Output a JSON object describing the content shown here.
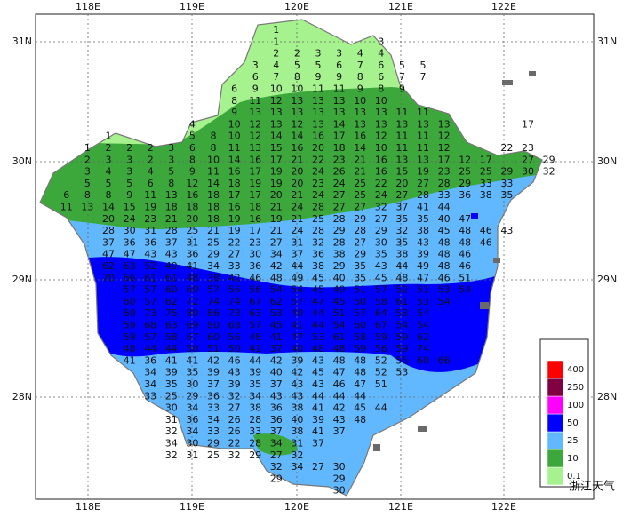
{
  "map": {
    "lon_labels": [
      "118E",
      "119E",
      "120E",
      "121E",
      "122E"
    ],
    "lat_labels": [
      "31N",
      "30N",
      "29N",
      "28N"
    ],
    "legend": [
      {
        "value": 0.1,
        "color": "#a6f28f"
      },
      {
        "value": 10,
        "color": "#3ca83c"
      },
      {
        "value": 25,
        "color": "#61b8ff"
      },
      {
        "value": 50,
        "color": "#0000fe"
      },
      {
        "value": 100,
        "color": "#ff00ff"
      },
      {
        "value": 250,
        "color": "#800040"
      },
      {
        "value": 400,
        "color": "#fe0000"
      }
    ],
    "watermark": "浙江天气",
    "stations": [
      [
        null,
        null,
        null,
        null,
        null,
        null,
        null,
        null,
        null,
        null,
        1
      ],
      [
        null,
        null,
        null,
        null,
        null,
        null,
        null,
        null,
        null,
        null,
        1,
        null,
        null,
        null,
        null,
        3
      ],
      [
        null,
        null,
        null,
        null,
        null,
        null,
        null,
        null,
        null,
        null,
        2,
        2,
        3,
        3,
        4,
        4
      ],
      [
        null,
        null,
        null,
        null,
        null,
        null,
        null,
        null,
        null,
        3,
        4,
        5,
        5,
        6,
        7,
        6,
        5,
        5
      ],
      [
        null,
        null,
        null,
        null,
        null,
        null,
        null,
        null,
        null,
        6,
        7,
        8,
        9,
        9,
        8,
        6,
        7,
        7
      ],
      [
        null,
        null,
        null,
        null,
        null,
        null,
        null,
        null,
        6,
        9,
        10,
        10,
        11,
        11,
        9,
        8,
        9
      ],
      [
        null,
        null,
        null,
        null,
        null,
        null,
        null,
        null,
        8,
        11,
        12,
        13,
        13,
        13,
        10,
        10
      ],
      [
        null,
        null,
        null,
        null,
        null,
        null,
        null,
        null,
        9,
        13,
        13,
        13,
        13,
        13,
        13,
        13,
        11,
        11
      ],
      [
        null,
        null,
        null,
        null,
        null,
        null,
        4,
        null,
        10,
        12,
        13,
        12,
        13,
        14,
        13,
        13,
        13,
        13,
        13,
        null,
        null,
        null,
        17
      ],
      [
        null,
        null,
        1,
        null,
        null,
        null,
        5,
        8,
        10,
        12,
        14,
        14,
        16,
        17,
        16,
        12,
        11,
        11,
        12
      ],
      [
        null,
        1,
        2,
        2,
        2,
        3,
        6,
        8,
        11,
        13,
        15,
        16,
        20,
        18,
        14,
        10,
        11,
        11,
        12,
        null,
        null,
        22,
        23
      ],
      [
        null,
        2,
        3,
        3,
        2,
        3,
        8,
        10,
        14,
        16,
        17,
        21,
        22,
        23,
        21,
        16,
        13,
        13,
        17,
        12,
        17,
        null,
        27,
        29
      ],
      [
        null,
        3,
        4,
        3,
        4,
        5,
        9,
        11,
        16,
        17,
        19,
        20,
        24,
        26,
        21,
        16,
        15,
        19,
        23,
        25,
        25,
        29,
        30,
        32
      ],
      [
        null,
        5,
        5,
        5,
        6,
        8,
        12,
        14,
        18,
        19,
        19,
        20,
        23,
        24,
        25,
        22,
        20,
        27,
        28,
        29,
        33,
        33
      ],
      [
        6,
        8,
        8,
        9,
        11,
        13,
        16,
        18,
        17,
        17,
        20,
        21,
        24,
        27,
        25,
        24,
        27,
        28,
        33,
        36,
        38,
        35
      ],
      [
        11,
        13,
        14,
        15,
        19,
        18,
        18,
        18,
        16,
        18,
        21,
        24,
        28,
        27,
        27,
        32,
        37,
        41,
        44
      ],
      [
        null,
        null,
        20,
        24,
        23,
        21,
        20,
        18,
        19,
        16,
        19,
        21,
        25,
        28,
        29,
        27,
        35,
        35,
        40,
        47
      ],
      [
        null,
        null,
        28,
        30,
        31,
        28,
        25,
        21,
        19,
        17,
        21,
        24,
        28,
        29,
        28,
        29,
        32,
        38,
        45,
        48,
        46,
        43
      ],
      [
        null,
        null,
        37,
        36,
        36,
        37,
        31,
        25,
        22,
        23,
        27,
        31,
        32,
        28,
        27,
        30,
        35,
        43,
        48,
        48,
        46
      ],
      [
        null,
        null,
        47,
        47,
        43,
        43,
        36,
        29,
        27,
        30,
        34,
        37,
        36,
        38,
        29,
        35,
        38,
        39,
        48,
        46
      ],
      [
        null,
        null,
        62,
        63,
        52,
        49,
        41,
        34,
        33,
        36,
        42,
        44,
        38,
        29,
        35,
        43,
        44,
        49,
        48,
        46
      ],
      [
        null,
        null,
        70,
        66,
        61,
        61,
        48,
        38,
        42,
        46,
        48,
        49,
        45,
        40,
        35,
        45,
        48,
        47,
        46,
        51
      ],
      [
        null,
        null,
        null,
        57,
        57,
        60,
        60,
        57,
        56,
        56,
        54,
        54,
        45,
        49,
        51,
        57,
        52,
        51,
        53,
        54
      ],
      [
        null,
        null,
        null,
        60,
        57,
        62,
        72,
        74,
        74,
        67,
        62,
        57,
        47,
        45,
        50,
        58,
        61,
        53,
        54
      ],
      [
        null,
        null,
        null,
        60,
        73,
        75,
        80,
        86,
        73,
        63,
        53,
        40,
        44,
        51,
        57,
        64,
        53,
        54
      ],
      [
        null,
        null,
        null,
        59,
        68,
        63,
        69,
        80,
        68,
        57,
        45,
        41,
        44,
        54,
        60,
        67,
        54,
        54
      ],
      [
        null,
        null,
        null,
        59,
        57,
        58,
        67,
        60,
        56,
        48,
        41,
        47,
        53,
        61,
        58,
        59,
        59,
        62
      ],
      [
        null,
        null,
        null,
        48,
        44,
        44,
        50,
        51,
        50,
        41,
        37,
        40,
        48,
        48,
        59,
        56,
        59,
        74
      ],
      [
        null,
        null,
        null,
        41,
        36,
        41,
        41,
        42,
        46,
        44,
        42,
        39,
        43,
        48,
        48,
        52,
        55,
        60,
        66
      ],
      [
        null,
        null,
        null,
        null,
        34,
        39,
        35,
        39,
        43,
        39,
        40,
        42,
        45,
        47,
        48,
        52,
        53
      ],
      [
        null,
        null,
        null,
        null,
        34,
        35,
        30,
        37,
        39,
        35,
        37,
        43,
        43,
        46,
        47,
        51
      ],
      [
        null,
        null,
        null,
        null,
        33,
        25,
        29,
        36,
        32,
        34,
        43,
        43,
        44,
        44,
        44
      ],
      [
        null,
        null,
        null,
        null,
        null,
        30,
        34,
        33,
        27,
        38,
        36,
        38,
        41,
        42,
        45,
        44
      ],
      [
        null,
        null,
        null,
        null,
        null,
        31,
        36,
        34,
        26,
        28,
        36,
        40,
        39,
        43,
        48
      ],
      [
        null,
        null,
        null,
        null,
        null,
        32,
        34,
        33,
        26,
        33,
        37,
        38,
        41,
        37
      ],
      [
        null,
        null,
        null,
        null,
        null,
        34,
        30,
        29,
        22,
        28,
        34,
        31,
        37
      ],
      [
        null,
        null,
        null,
        null,
        null,
        32,
        31,
        25,
        32,
        29,
        27,
        32
      ],
      [
        null,
        null,
        null,
        null,
        null,
        null,
        null,
        null,
        null,
        null,
        32,
        34,
        27,
        30
      ],
      [
        null,
        null,
        null,
        null,
        null,
        null,
        null,
        null,
        null,
        null,
        29,
        null,
        null,
        29
      ],
      [
        null,
        null,
        null,
        null,
        null,
        null,
        null,
        null,
        null,
        null,
        null,
        null,
        null,
        30
      ]
    ]
  }
}
